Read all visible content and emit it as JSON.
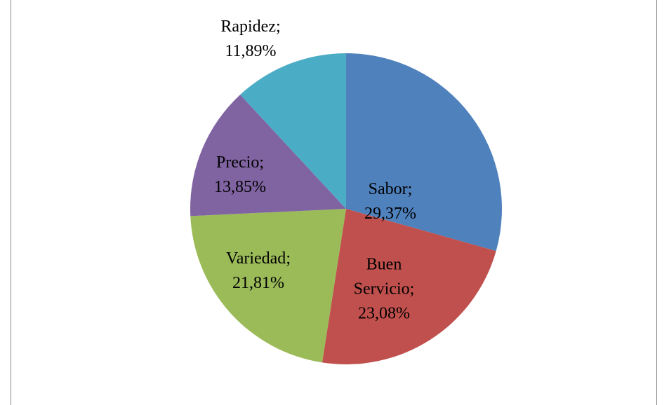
{
  "chart_data": {
    "type": "pie",
    "categories": [
      "Sabor",
      "Buen Servicio",
      "Variedad",
      "Precio",
      "Rapidez"
    ],
    "values": [
      29.37,
      23.08,
      21.81,
      13.85,
      11.89
    ],
    "value_labels": [
      "29,37%",
      "23,08%",
      "21,81%",
      "13,85%",
      "11,89%"
    ],
    "label_separator": ";",
    "colors": [
      "#4f81bd",
      "#c0504d",
      "#9bbb59",
      "#8064a2",
      "#4bacc6"
    ]
  }
}
